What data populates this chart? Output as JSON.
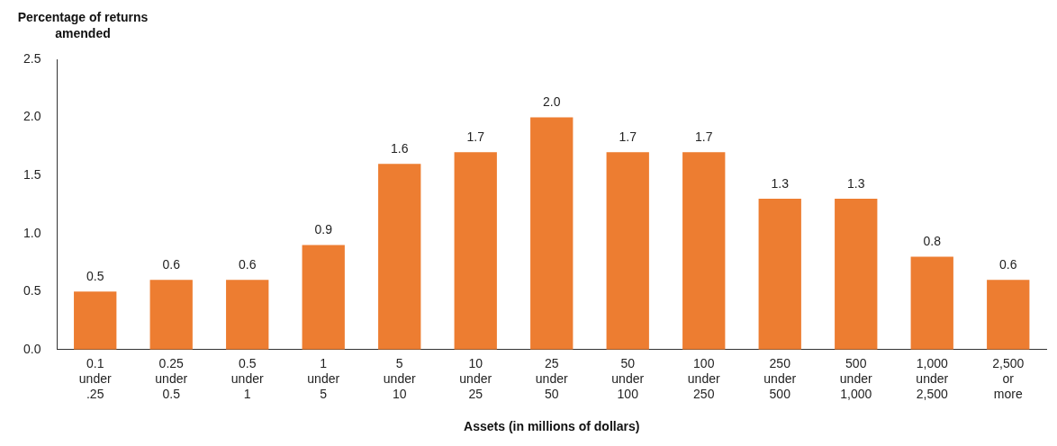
{
  "chart_data": {
    "type": "bar",
    "ylabel": "Percentage of returns amended",
    "xlabel": "Assets (in millions of dollars)",
    "categories": [
      "0.1 under .25",
      "0.25 under 0.5",
      "0.5 under 1",
      "1 under 5",
      "5 under 10",
      "10 under 25",
      "25 under 50",
      "50 under 100",
      "100 under 250",
      "250 under 500",
      "500 under 1,000",
      "1,000 under 2,500",
      "2,500 or more"
    ],
    "values": [
      0.5,
      0.6,
      0.6,
      0.9,
      1.6,
      1.7,
      2.0,
      1.7,
      1.7,
      1.3,
      1.3,
      0.8,
      0.6
    ],
    "color": "#ed7d31",
    "ylim": [
      0,
      2.5
    ],
    "yticks": [
      {
        "value": 0,
        "label": "0.0"
      },
      {
        "value": 0.5,
        "label": "0.5"
      },
      {
        "value": 1,
        "label": "1.0"
      },
      {
        "value": 1.5,
        "label": "1.5"
      },
      {
        "value": 2,
        "label": "2.0"
      },
      {
        "value": 2.5,
        "label": "2.5"
      }
    ],
    "value_labels": [
      "0.5",
      "0.6",
      "0.6",
      "0.9",
      "1.6",
      "1.7",
      "2.0",
      "1.7",
      "1.7",
      "1.3",
      "1.3",
      "0.8",
      "0.6"
    ],
    "grid": false,
    "legend": false
  }
}
